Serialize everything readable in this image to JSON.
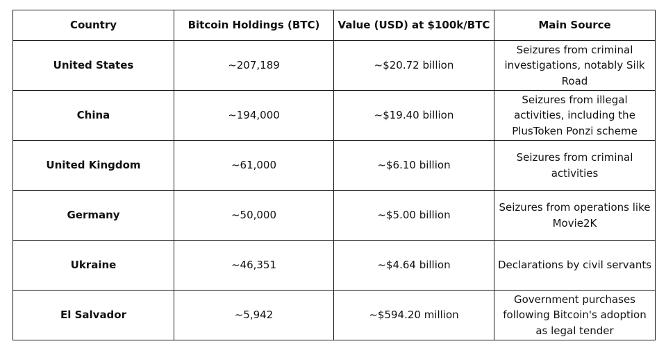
{
  "table": {
    "headers": [
      "Country",
      "Bitcoin Holdings (BTC)",
      "Value (USD) at $100k/BTC",
      "Main Source"
    ],
    "rows": [
      {
        "country": "United States",
        "holdings": "~207,189",
        "value": "~$20.72 billion",
        "source": "Seizures from criminal investigations, notably Silk Road"
      },
      {
        "country": "China",
        "holdings": "~194,000",
        "value": "~$19.40 billion",
        "source": "Seizures from illegal activities, including the PlusToken Ponzi scheme"
      },
      {
        "country": "United Kingdom",
        "holdings": "~61,000",
        "value": "~$6.10 billion",
        "source": "Seizures from criminal activities"
      },
      {
        "country": "Germany",
        "holdings": "~50,000",
        "value": "~$5.00 billion",
        "source": "Seizures from operations like Movie2K"
      },
      {
        "country": "Ukraine",
        "holdings": "~46,351",
        "value": "~$4.64 billion",
        "source": "Declarations by civil servants"
      },
      {
        "country": "El Salvador",
        "holdings": "~5,942",
        "value": "~$594.20 million",
        "source": "Government purchases following Bitcoin's adoption as legal tender"
      }
    ]
  }
}
